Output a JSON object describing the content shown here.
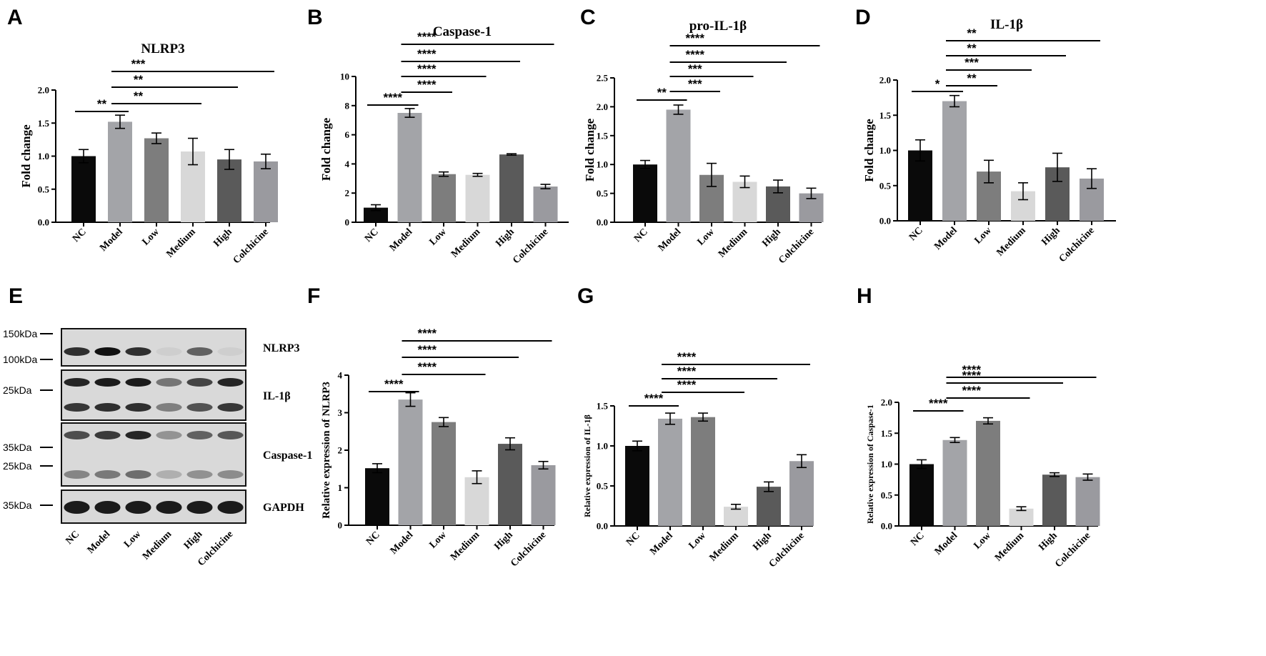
{
  "colors": {
    "NC": "#0a0a0a",
    "Model": "#a3a4a8",
    "Low": "#7d7d7d",
    "Medium": "#d8d8d8",
    "High": "#5a5a5a",
    "Colchicine": "#9a9a9f"
  },
  "chart_data": [
    {
      "panel": "A",
      "type": "bar",
      "title": "NLRP3",
      "ylabel": "Fold change",
      "categories": [
        "NC",
        "Model",
        "Low",
        "Medium",
        "High",
        "Colchicine"
      ],
      "values": [
        1.0,
        1.52,
        1.27,
        1.07,
        0.95,
        0.92
      ],
      "errors": [
        0.1,
        0.1,
        0.08,
        0.2,
        0.15,
        0.11
      ],
      "ylim": [
        0,
        2.0
      ],
      "yticks": [
        "0.0",
        "0.5",
        "1.0",
        "1.5",
        "2.0"
      ],
      "significance": [
        {
          "from": "NC",
          "to": "Model",
          "label": "**"
        },
        {
          "from": "Model",
          "to": "Medium",
          "label": "**"
        },
        {
          "from": "Model",
          "to": "High",
          "label": "**"
        },
        {
          "from": "Model",
          "to": "Colchicine",
          "label": "***"
        }
      ]
    },
    {
      "panel": "B",
      "type": "bar",
      "title": "Caspase-1",
      "ylabel": "Fold change",
      "categories": [
        "NC",
        "Model",
        "Low",
        "Medium",
        "High",
        "Colchicine"
      ],
      "values": [
        1.0,
        7.5,
        3.3,
        3.25,
        4.65,
        2.45
      ],
      "errors": [
        0.2,
        0.3,
        0.15,
        0.1,
        0.05,
        0.15
      ],
      "ylim": [
        0,
        10
      ],
      "yticks": [
        "0",
        "2",
        "4",
        "6",
        "8",
        "10"
      ],
      "significance": [
        {
          "from": "NC",
          "to": "Model",
          "label": "****"
        },
        {
          "from": "Model",
          "to": "Low",
          "label": "****"
        },
        {
          "from": "Model",
          "to": "Medium",
          "label": "****"
        },
        {
          "from": "Model",
          "to": "High",
          "label": "****"
        },
        {
          "from": "Model",
          "to": "Colchicine",
          "label": "****"
        }
      ]
    },
    {
      "panel": "C",
      "type": "bar",
      "title": "pro-IL-1β",
      "ylabel": "Fold change",
      "categories": [
        "NC",
        "Model",
        "Low",
        "Medium",
        "High",
        "Colchicine"
      ],
      "values": [
        1.0,
        1.95,
        0.82,
        0.7,
        0.62,
        0.5
      ],
      "errors": [
        0.07,
        0.08,
        0.2,
        0.1,
        0.11,
        0.09
      ],
      "ylim": [
        0,
        2.5
      ],
      "yticks": [
        "0.0",
        "0.5",
        "1.0",
        "1.5",
        "2.0",
        "2.5"
      ],
      "significance": [
        {
          "from": "NC",
          "to": "Model",
          "label": "**"
        },
        {
          "from": "Model",
          "to": "Low",
          "label": "***"
        },
        {
          "from": "Model",
          "to": "Medium",
          "label": "***"
        },
        {
          "from": "Model",
          "to": "High",
          "label": "****"
        },
        {
          "from": "Model",
          "to": "Colchicine",
          "label": "****"
        }
      ]
    },
    {
      "panel": "D",
      "type": "bar",
      "title": "IL-1β",
      "ylabel": "Fold change",
      "categories": [
        "NC",
        "Model",
        "Low",
        "Medium",
        "High",
        "Colchicine"
      ],
      "values": [
        1.0,
        1.7,
        0.7,
        0.42,
        0.76,
        0.6
      ],
      "errors": [
        0.15,
        0.08,
        0.16,
        0.12,
        0.2,
        0.14
      ],
      "ylim": [
        0,
        2.0
      ],
      "yticks": [
        "0.0",
        "0.5",
        "1.0",
        "1.5",
        "2.0"
      ],
      "significance": [
        {
          "from": "NC",
          "to": "Model",
          "label": "*"
        },
        {
          "from": "Model",
          "to": "Low",
          "label": "**"
        },
        {
          "from": "Model",
          "to": "Medium",
          "label": "***"
        },
        {
          "from": "Model",
          "to": "High",
          "label": "**"
        },
        {
          "from": "Model",
          "to": "Colchicine",
          "label": "**"
        }
      ]
    },
    {
      "panel": "F",
      "type": "bar",
      "title": "",
      "ylabel": "Relative expression of NLRP3",
      "categories": [
        "NC",
        "Model",
        "Low",
        "Medium",
        "High",
        "Colchicine"
      ],
      "values": [
        1.52,
        3.35,
        2.75,
        1.28,
        2.17,
        1.6
      ],
      "errors": [
        0.12,
        0.18,
        0.12,
        0.17,
        0.16,
        0.1
      ],
      "ylim": [
        0,
        4
      ],
      "yticks": [
        "0",
        "1",
        "2",
        "3",
        "4"
      ],
      "significance": [
        {
          "from": "NC",
          "to": "Model",
          "label": "****"
        },
        {
          "from": "Model",
          "to": "Medium",
          "label": "****"
        },
        {
          "from": "Model",
          "to": "High",
          "label": "****"
        },
        {
          "from": "Model",
          "to": "Colchicine",
          "label": "****"
        }
      ]
    },
    {
      "panel": "G",
      "type": "bar",
      "title": "",
      "ylabel": "Relative expression of IL-1β",
      "categories": [
        "NC",
        "Model",
        "Low",
        "Medium",
        "High",
        "Colchicine"
      ],
      "values": [
        1.0,
        1.34,
        1.36,
        0.24,
        0.49,
        0.81
      ],
      "errors": [
        0.06,
        0.07,
        0.05,
        0.03,
        0.06,
        0.08
      ],
      "ylim": [
        0,
        1.5
      ],
      "yticks": [
        "0.0",
        "0.5",
        "1.0",
        "1.5"
      ],
      "significance": [
        {
          "from": "NC",
          "to": "Model",
          "label": "****"
        },
        {
          "from": "Model",
          "to": "Medium",
          "label": "****"
        },
        {
          "from": "Model",
          "to": "High",
          "label": "****"
        },
        {
          "from": "Model",
          "to": "Colchicine",
          "label": "****"
        }
      ]
    },
    {
      "panel": "H",
      "type": "bar",
      "title": "",
      "ylabel": "Relative expression of Caspase-1",
      "categories": [
        "NC",
        "Model",
        "Low",
        "Medium",
        "High",
        "Colchicine"
      ],
      "values": [
        1.0,
        1.39,
        1.7,
        0.28,
        0.83,
        0.79
      ],
      "errors": [
        0.07,
        0.04,
        0.05,
        0.03,
        0.03,
        0.05
      ],
      "ylim": [
        0,
        2.0
      ],
      "yticks": [
        "0.0",
        "0.5",
        "1.0",
        "1.5",
        "2.0"
      ],
      "significance": [
        {
          "from": "NC",
          "to": "Model",
          "label": "****"
        },
        {
          "from": "Model",
          "to": "Medium",
          "label": "****"
        },
        {
          "from": "Model",
          "to": "High",
          "label": "****"
        },
        {
          "from": "Model",
          "to": "Colchicine",
          "label": "****"
        }
      ]
    }
  ],
  "western_blot": {
    "panel": "E",
    "lanes": [
      "NC",
      "Model",
      "Low",
      "Medium",
      "High",
      "Colchicine"
    ],
    "markers": [
      "150kDa",
      "100kDa",
      "25kDa",
      "35kDa",
      "25kDa",
      "35kDa"
    ],
    "proteins": [
      "NLRP3",
      "IL-1β",
      "Caspase-1",
      "GAPDH"
    ],
    "band_intensity": {
      "NLRP3": [
        0.85,
        1.0,
        0.85,
        0.05,
        0.6,
        0.05
      ],
      "IL-1β": [
        0.9,
        0.95,
        0.95,
        0.5,
        0.75,
        0.9
      ],
      "Caspase-1": [
        0.7,
        0.8,
        0.9,
        0.35,
        0.6,
        0.65
      ],
      "GAPDH": [
        0.95,
        0.95,
        0.95,
        0.95,
        0.95,
        0.95
      ]
    }
  }
}
